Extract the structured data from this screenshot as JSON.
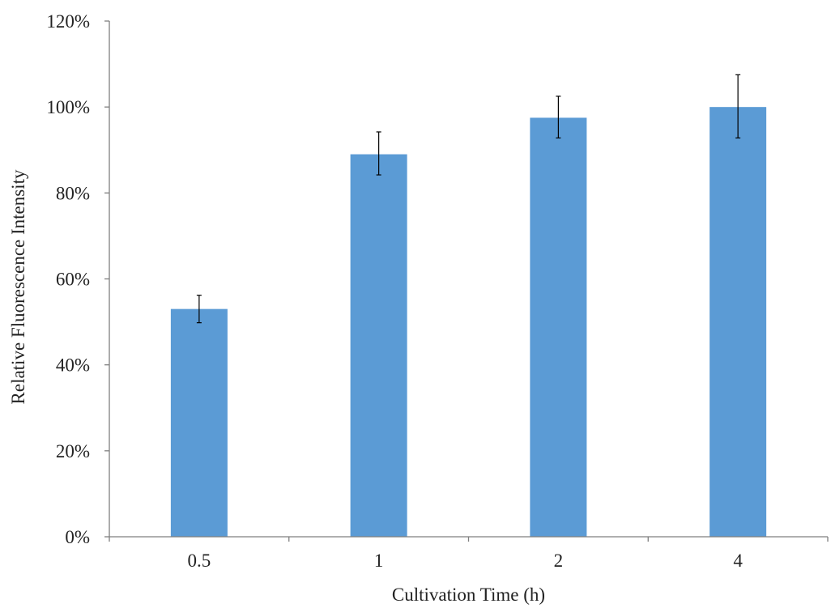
{
  "chart_data": {
    "type": "bar",
    "title": "",
    "xlabel": "Cultivation Time (h)",
    "ylabel": "Relative Fluorescence Intensity",
    "categories": [
      "0.5",
      "1",
      "2",
      "4"
    ],
    "values": [
      53,
      89,
      97.5,
      100
    ],
    "error_low": [
      49.8,
      84.2,
      92.8,
      92.8
    ],
    "error_high": [
      56.2,
      94.2,
      102.5,
      107.5
    ],
    "ylim": [
      0,
      120
    ],
    "yticks": [
      0,
      20,
      40,
      60,
      80,
      100,
      120
    ],
    "ytick_labels": [
      "0%",
      "20%",
      "40%",
      "60%",
      "80%",
      "100%",
      "120%"
    ],
    "grid": false,
    "legend": "none",
    "bar_color": "#5B9BD5",
    "error_bar_color": "#000000",
    "axis_color": "#7f7f7f"
  }
}
